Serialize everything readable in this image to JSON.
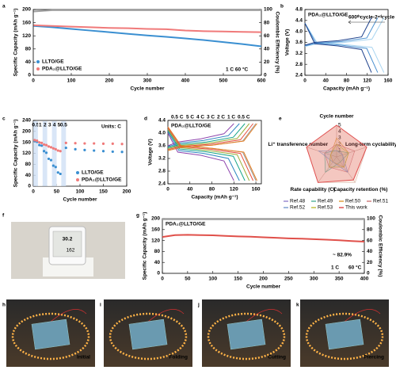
{
  "chart_data": [
    {
      "type": "line",
      "panel": "a",
      "xlabel": "Cycle number",
      "ylabel": "Specific Capacity (mAh g⁻¹)",
      "y2label": "Coulombic Efficiency (%)",
      "xlim": [
        0,
        600
      ],
      "xticks": [
        0,
        100,
        200,
        300,
        400,
        500,
        600
      ],
      "ylim": [
        0,
        200
      ],
      "yticks": [
        0,
        40,
        80,
        120,
        160,
        200
      ],
      "y2lim": [
        0,
        100
      ],
      "y2ticks": [
        0,
        20,
        40,
        60,
        80,
        100
      ],
      "x": [
        1,
        50,
        100,
        150,
        200,
        250,
        300,
        350,
        400,
        450,
        500,
        550,
        600
      ],
      "series": [
        {
          "name": "LLTO/GE",
          "color": "#3a8fd1",
          "values": [
            150,
            146,
            141,
            136,
            131,
            126,
            121,
            117,
            112,
            107,
            101,
            95,
            88
          ]
        },
        {
          "name": "PDA₂@LLTO/GE",
          "color": "#f07a7a",
          "values": [
            152,
            150,
            148,
            146,
            144,
            143,
            141,
            140,
            136,
            134,
            133,
            132,
            131
          ]
        },
        {
          "color": "#a0a0a0",
          "axis": "y2",
          "values": [
            97,
            99,
            99,
            99,
            99,
            99,
            99,
            99,
            99,
            99,
            99,
            99,
            99
          ]
        }
      ],
      "annotations": [
        "1 C 60 °C"
      ],
      "legend": "lower left"
    },
    {
      "type": "voltage",
      "panel": "b",
      "title": "PDA₂@LLTO/GE",
      "annotations": [
        "600ᵗʰcycle-2ⁿᵈcycle"
      ],
      "xlabel": "Capacity (mAh g⁻¹)",
      "ylabel": "Voltage (V)",
      "xlim": [
        0,
        160
      ],
      "xticks": [
        0,
        40,
        80,
        120,
        160
      ],
      "ylim": [
        2.4,
        4.8
      ],
      "yticks": [
        2.4,
        2.8,
        3.2,
        3.6,
        {
          "value": 4,
          "label": "4.0"
        },
        4.4,
        4.8
      ],
      "series": [
        {
          "color": "#a8d4f0",
          "x": [
            0,
            23,
            76,
            129,
            152
          ],
          "charge": [
            3.45,
            3.55,
            3.6,
            3.72,
            4.5
          ],
          "discharge": [
            4.3,
            3.6,
            3.52,
            3.42,
            2.5
          ]
        },
        {
          "color": "#4a90d0",
          "x": [
            0,
            21,
            70,
            119,
            140
          ],
          "charge": [
            3.47,
            3.57,
            3.63,
            3.76,
            4.5
          ],
          "discharge": [
            4.3,
            3.58,
            3.5,
            3.38,
            2.5
          ]
        },
        {
          "color": "#1b3f8b",
          "x": [
            0,
            19,
            64,
            109,
            128
          ],
          "charge": [
            3.5,
            3.6,
            3.66,
            3.8,
            4.5
          ],
          "discharge": [
            4.3,
            3.55,
            3.47,
            3.34,
            2.5
          ]
        }
      ]
    },
    {
      "type": "scatter",
      "panel": "c",
      "xlabel": "Cycle number",
      "ylabel": "Specific Capacity (mAh g⁻¹)",
      "xlim": [
        0,
        200
      ],
      "xticks": [
        0,
        50,
        100,
        150,
        200
      ],
      "ylim": [
        0,
        240
      ],
      "yticks": [
        0,
        40,
        80,
        120,
        160,
        200,
        240
      ],
      "annotations": [
        "Units: C"
      ],
      "rate_regions": [
        {
          "label": "0.5",
          "start": 0,
          "end": 10
        },
        {
          "label": "1",
          "start": 10,
          "end": 20
        },
        {
          "label": "2",
          "start": 20,
          "end": 30
        },
        {
          "label": "3",
          "start": 30,
          "end": 40
        },
        {
          "label": "4",
          "start": 40,
          "end": 50
        },
        {
          "label": "5",
          "start": 50,
          "end": 60
        },
        {
          "label": "0.5",
          "start": 60,
          "end": 70
        }
      ],
      "x": [
        3,
        8,
        13,
        18,
        23,
        28,
        33,
        38,
        43,
        48,
        53,
        58,
        70,
        90,
        110,
        130,
        150,
        170,
        190
      ],
      "series": [
        {
          "name": "LLTO/GE",
          "color": "#3a8fd1",
          "values": [
            165,
            162,
            150,
            148,
            128,
            122,
            100,
            95,
            75,
            70,
            50,
            45,
            140,
            135,
            132,
            130,
            128,
            126,
            125
          ]
        },
        {
          "name": "PDA₂@LLTO/GE",
          "color": "#f07a7a",
          "values": [
            168,
            166,
            160,
            158,
            152,
            150,
            145,
            142,
            138,
            135,
            130,
            128,
            158,
            157,
            156,
            156,
            155,
            155,
            154
          ]
        }
      ],
      "legend": "lower right"
    },
    {
      "type": "voltage",
      "panel": "d",
      "title": "PDA₂@LLTO/GE",
      "xlabel": "Capacity (mAh g⁻¹)",
      "ylabel": "Voltage (V)",
      "xlim": [
        0,
        170
      ],
      "xticks": [
        0,
        40,
        80,
        120,
        160
      ],
      "ylim": [
        2.4,
        4.4
      ],
      "yticks": [
        2.4,
        2.8,
        3.2,
        3.6,
        {
          "value": 4,
          "label": "4.0"
        },
        4.4
      ],
      "series": [
        {
          "name": "0.5 C",
          "color": "#9a9a9a",
          "x": [
            0,
            24,
            80,
            136,
            160
          ],
          "charge": [
            3.45,
            3.55,
            3.62,
            3.75,
            4.3
          ],
          "discharge": [
            4.2,
            3.6,
            3.52,
            3.4,
            2.5
          ]
        },
        {
          "name": "5 C",
          "color": "#8e44ad",
          "x": [
            0,
            18,
            60,
            102,
            120
          ],
          "charge": [
            3.6,
            3.72,
            3.82,
            3.98,
            4.3
          ],
          "discharge": [
            4.0,
            3.4,
            3.3,
            3.12,
            2.5
          ]
        },
        {
          "name": "4 C",
          "color": "#2e86c1",
          "x": [
            0,
            20,
            65,
            110,
            130
          ],
          "charge": [
            3.57,
            3.68,
            3.77,
            3.92,
            4.3
          ],
          "discharge": [
            4.05,
            3.45,
            3.36,
            3.2,
            2.5
          ]
        },
        {
          "name": "3 C",
          "color": "#17a589",
          "x": [
            0,
            21,
            70,
            119,
            140
          ],
          "charge": [
            3.54,
            3.64,
            3.72,
            3.87,
            4.3
          ],
          "discharge": [
            4.1,
            3.5,
            3.41,
            3.27,
            2.5
          ]
        },
        {
          "name": "2 C",
          "color": "#9cae3a",
          "x": [
            0,
            22,
            74,
            126,
            148
          ],
          "charge": [
            3.51,
            3.61,
            3.68,
            3.83,
            4.3
          ],
          "discharge": [
            4.12,
            3.54,
            3.45,
            3.32,
            2.5
          ]
        },
        {
          "name": "1 C",
          "color": "#e74c3c",
          "x": [
            0,
            23,
            78,
            132,
            155
          ],
          "charge": [
            3.48,
            3.58,
            3.65,
            3.79,
            4.3
          ],
          "discharge": [
            4.16,
            3.57,
            3.49,
            3.36,
            2.5
          ]
        },
        {
          "name": "0.5 C",
          "color": "#e67e22",
          "x": [
            0,
            24,
            81,
            138,
            162
          ],
          "charge": [
            3.45,
            3.55,
            3.62,
            3.75,
            4.3
          ],
          "discharge": [
            4.2,
            3.6,
            3.52,
            3.4,
            2.5
          ]
        }
      ]
    },
    {
      "type": "radar",
      "panel": "e",
      "axes": [
        "Cycle number",
        "Long-term cyclability (h)",
        "Capacity retention (%)",
        "Rate capability (C)",
        "Li⁺ transference number"
      ],
      "rlim": [
        0,
        5
      ],
      "rticks": [
        1,
        2,
        3,
        4,
        5
      ],
      "series": [
        {
          "name": "Ref.48",
          "color": "#9b8bd0",
          "values": [
            2,
            1,
            2,
            2,
            1
          ]
        },
        {
          "name": "Ref.49",
          "color": "#5bb5a0",
          "values": [
            1,
            2,
            1,
            3,
            2
          ]
        },
        {
          "name": "Ref.50",
          "color": "#e0a040",
          "values": [
            3,
            2,
            2,
            1,
            1
          ]
        },
        {
          "name": "Ref.51",
          "color": "#d08080",
          "values": [
            2,
            3,
            3,
            2,
            2
          ]
        },
        {
          "name": "Ref.52",
          "color": "#7fa0d0",
          "values": [
            1,
            1,
            3,
            1,
            3
          ]
        },
        {
          "name": "Ref.53",
          "color": "#c0c040",
          "values": [
            2,
            2,
            2,
            2,
            1
          ]
        },
        {
          "name": "This work",
          "color": "#e05050",
          "values": [
            5,
            5,
            4.5,
            5,
            5
          ]
        }
      ]
    },
    {
      "type": "line",
      "panel": "g",
      "title": "PDA₂@LLTO/GE",
      "xlabel": "Cycle number",
      "ylabel": "Specific Capacity (mAh g⁻¹)",
      "y2label": "Coulombic Efficiency (%)",
      "xlim": [
        0,
        400
      ],
      "xticks": [
        0,
        50,
        100,
        150,
        200,
        250,
        300,
        350,
        400
      ],
      "ylim": [
        0,
        200
      ],
      "yticks": [
        0,
        40,
        80,
        120,
        160,
        200
      ],
      "y2lim": [
        0,
        100
      ],
      "y2ticks": [
        0,
        20,
        40,
        60,
        80,
        100
      ],
      "x": [
        0,
        25,
        50,
        75,
        100,
        125,
        150,
        175,
        200,
        225,
        250,
        275,
        300,
        325,
        350,
        375,
        400
      ],
      "series": [
        {
          "color": "#e0504a",
          "values": [
            133,
            140,
            141,
            140,
            139,
            137,
            135,
            134,
            132,
            130,
            128,
            127,
            125,
            123,
            121,
            118,
            116
          ]
        },
        {
          "color": "#a0a0a0",
          "axis": "y2",
          "values": [
            99,
            99,
            99,
            99,
            99,
            99,
            99,
            99,
            99,
            99,
            99,
            99,
            99,
            99,
            99,
            99,
            99
          ]
        }
      ],
      "annotations": [
        "~ 82.9%",
        "1 C",
        "60 °C"
      ]
    }
  ],
  "photos": [
    {
      "panel": "f",
      "texts": [
        "30.2",
        "162"
      ]
    },
    {
      "panel": "h",
      "label": "Initial"
    },
    {
      "panel": "i",
      "label": "Folding"
    },
    {
      "panel": "j",
      "label": "Cutting"
    },
    {
      "panel": "k",
      "label": "Piercing"
    }
  ]
}
